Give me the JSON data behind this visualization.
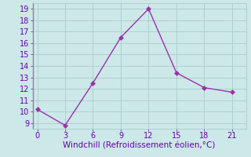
{
  "x": [
    0,
    3,
    6,
    9,
    12,
    15,
    18,
    21
  ],
  "y": [
    10.2,
    8.8,
    12.5,
    16.5,
    19.0,
    13.4,
    12.1,
    11.7
  ],
  "line_color": "#9933aa",
  "marker_color": "#9933aa",
  "bg_color": "#cce8e8",
  "grid_color": "#aacccc",
  "xlabel": "Windchill (Refroidissement éolien,°C)",
  "xlabel_color": "#6600aa",
  "xlabel_fontsize": 7.5,
  "xticks": [
    0,
    3,
    6,
    9,
    12,
    15,
    18,
    21
  ],
  "yticks": [
    9,
    10,
    11,
    12,
    13,
    14,
    15,
    16,
    17,
    18,
    19
  ],
  "ylim": [
    8.5,
    19.5
  ],
  "xlim": [
    -0.5,
    22.5
  ],
  "tick_fontsize": 7.0,
  "tick_color": "#6600aa",
  "marker_size": 3,
  "line_width": 1.0,
  "spine_color": "#8888aa"
}
